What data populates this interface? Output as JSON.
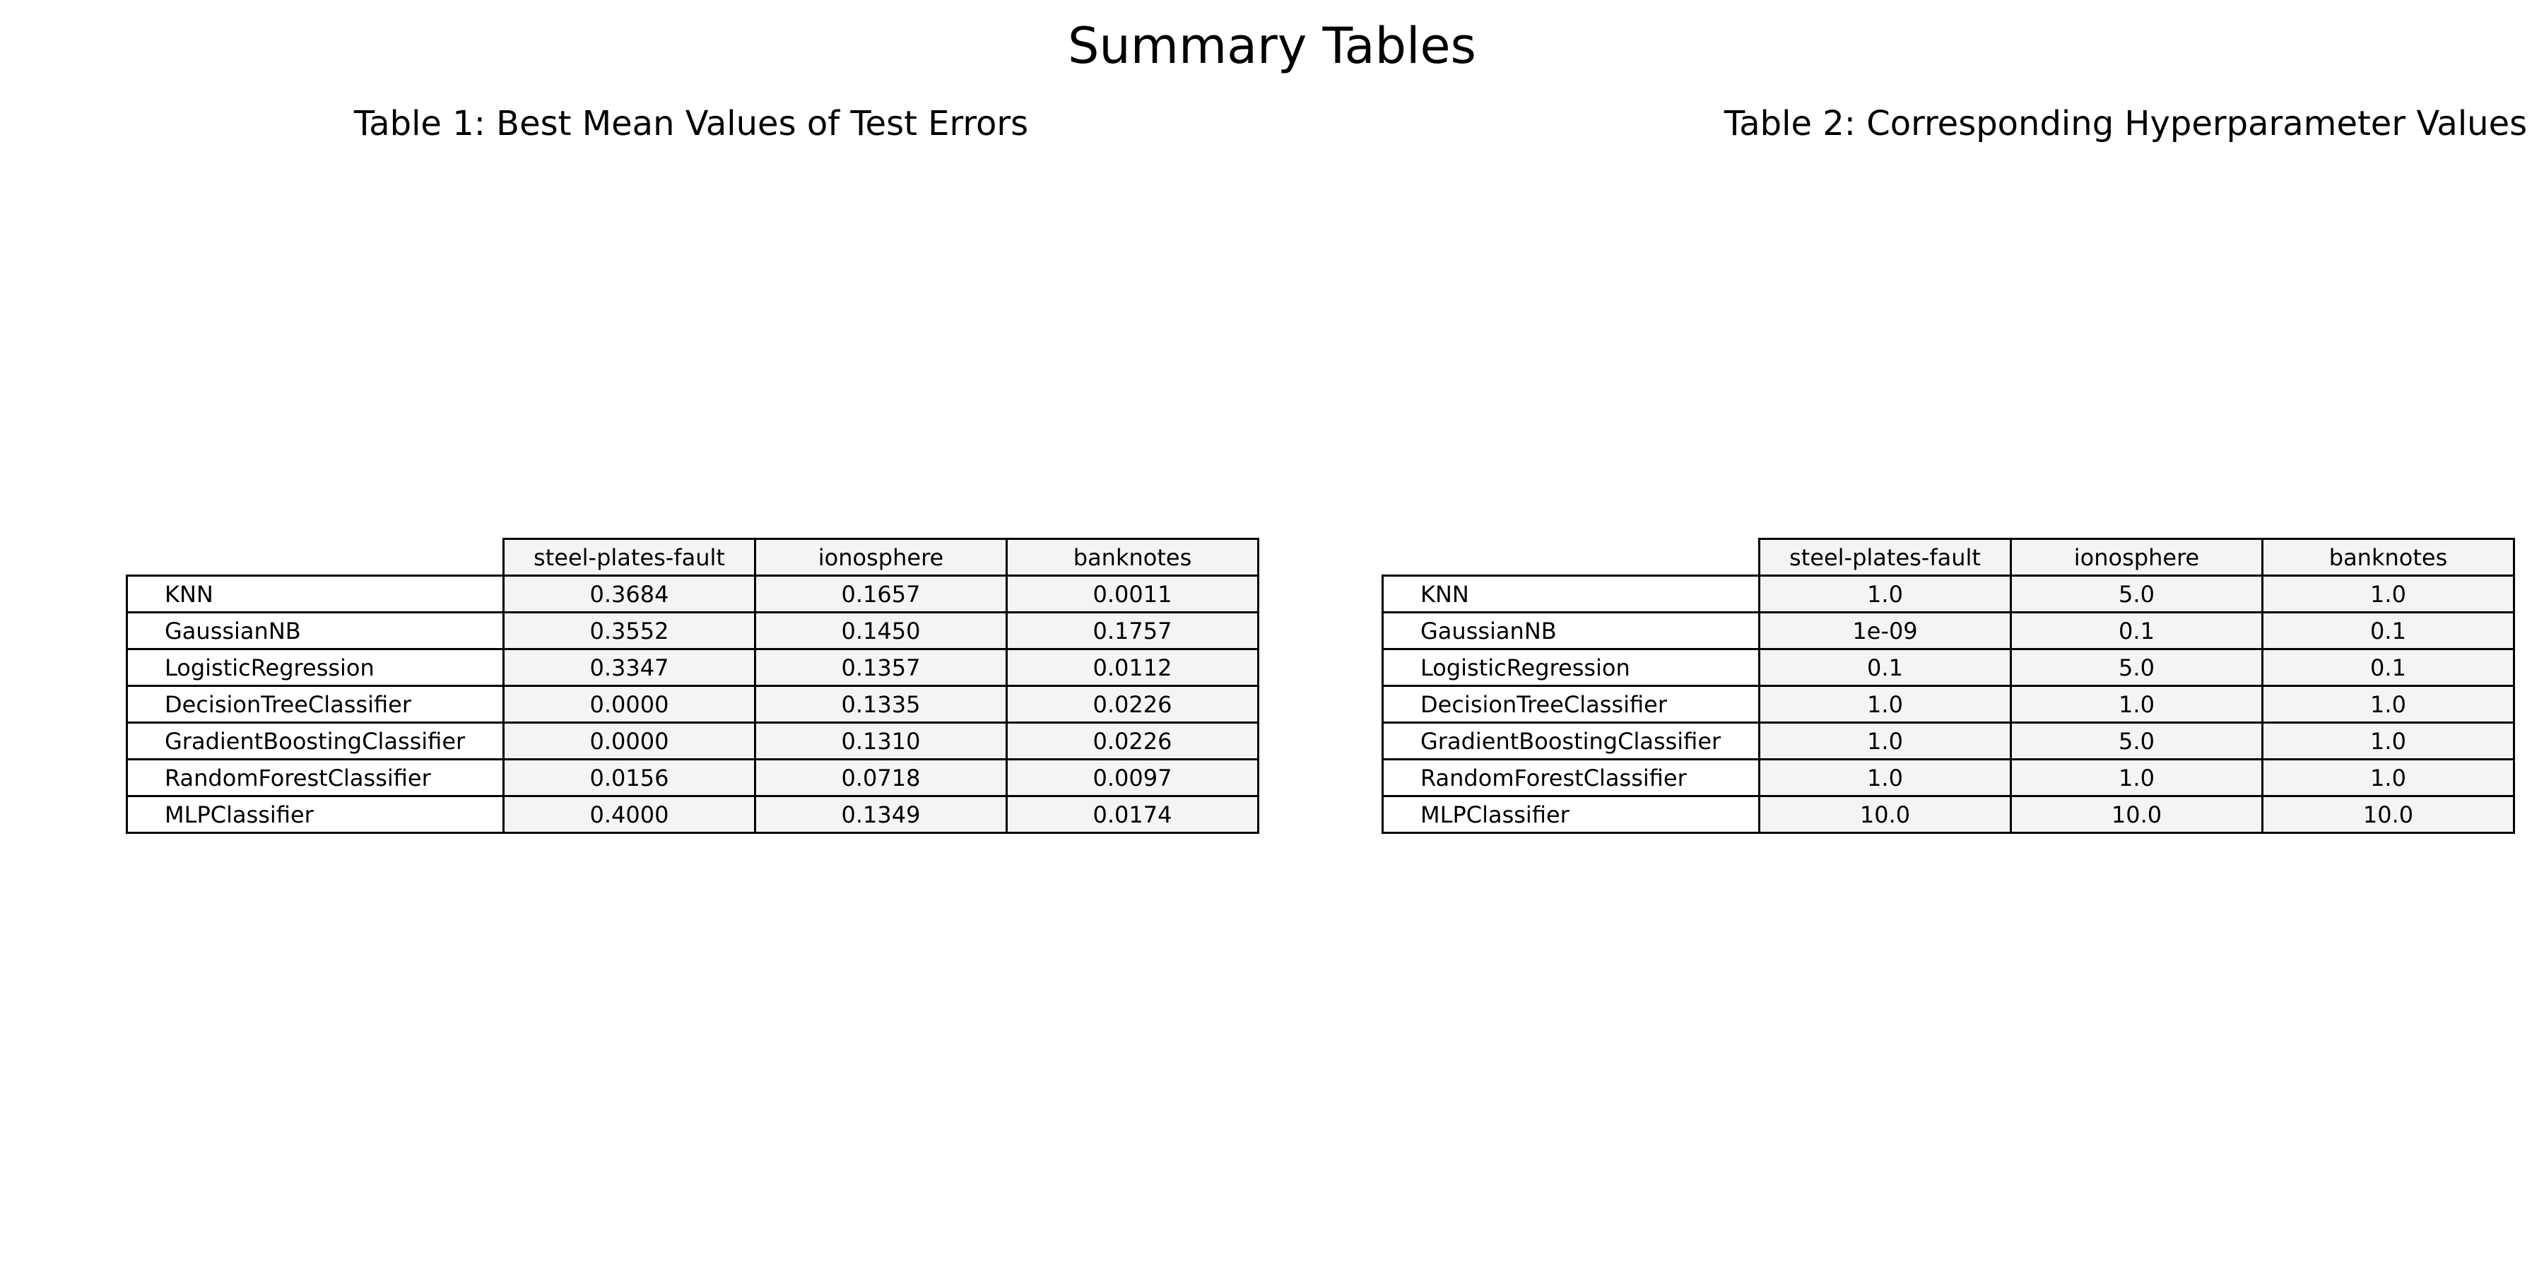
{
  "figure": {
    "suptitle": "Summary Tables"
  },
  "chart_data": [
    {
      "type": "table",
      "title": "Table 1: Best Mean Values of Test Errors",
      "columns": [
        "steel-plates-fault",
        "ionosphere",
        "banknotes"
      ],
      "rows": [
        {
          "label": "KNN",
          "values": [
            "0.3684",
            "0.1657",
            "0.0011"
          ]
        },
        {
          "label": "GaussianNB",
          "values": [
            "0.3552",
            "0.1450",
            "0.1757"
          ]
        },
        {
          "label": "LogisticRegression",
          "values": [
            "0.3347",
            "0.1357",
            "0.0112"
          ]
        },
        {
          "label": "DecisionTreeClassifier",
          "values": [
            "0.0000",
            "0.1335",
            "0.0226"
          ]
        },
        {
          "label": "GradientBoostingClassifier",
          "values": [
            "0.0000",
            "0.1310",
            "0.0226"
          ]
        },
        {
          "label": "RandomForestClassifier",
          "values": [
            "0.0156",
            "0.0718",
            "0.0097"
          ]
        },
        {
          "label": "MLPClassifier",
          "values": [
            "0.4000",
            "0.1349",
            "0.0174"
          ]
        }
      ]
    },
    {
      "type": "table",
      "title": "Table 2: Corresponding Hyperparameter Values",
      "columns": [
        "steel-plates-fault",
        "ionosphere",
        "banknotes"
      ],
      "rows": [
        {
          "label": "KNN",
          "values": [
            "1.0",
            "5.0",
            "1.0"
          ]
        },
        {
          "label": "GaussianNB",
          "values": [
            "1e-09",
            "0.1",
            "0.1"
          ]
        },
        {
          "label": "LogisticRegression",
          "values": [
            "0.1",
            "5.0",
            "0.1"
          ]
        },
        {
          "label": "DecisionTreeClassifier",
          "values": [
            "1.0",
            "1.0",
            "1.0"
          ]
        },
        {
          "label": "GradientBoostingClassifier",
          "values": [
            "1.0",
            "5.0",
            "1.0"
          ]
        },
        {
          "label": "RandomForestClassifier",
          "values": [
            "1.0",
            "1.0",
            "1.0"
          ]
        },
        {
          "label": "MLPClassifier",
          "values": [
            "10.0",
            "10.0",
            "10.0"
          ]
        }
      ]
    }
  ]
}
